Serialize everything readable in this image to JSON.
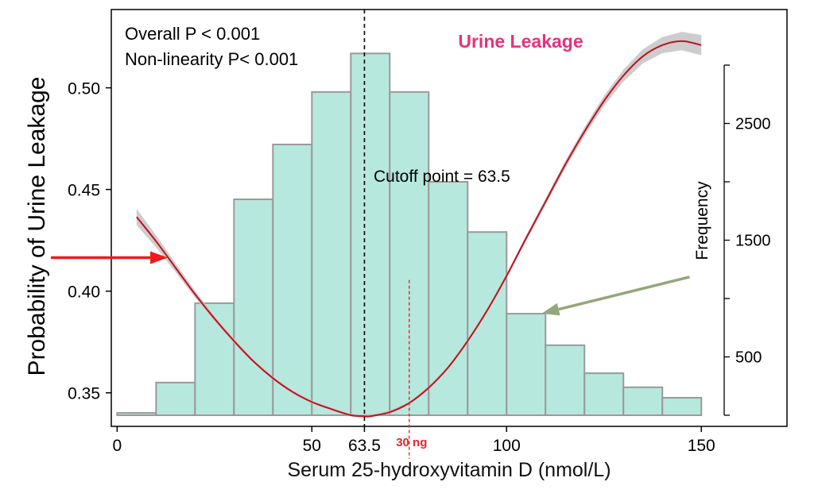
{
  "chart_data": {
    "type": "bar+line",
    "title": "Urine Leakage",
    "title_color": "#e8317b",
    "xlabel": "Serum 25-hydroxyvitamin D (nmol/L)",
    "ylabel": "Probability of Urine Leakage",
    "y2label": "Frequency",
    "xlim": [
      -1.5,
      172
    ],
    "ylim": [
      0.3335,
      0.5385
    ],
    "y2lim": [
      0,
      3000
    ],
    "x_ticks": [
      0,
      50,
      100,
      150
    ],
    "x_tick_labels": [
      "0",
      "50",
      "100",
      "150"
    ],
    "extra_x_tick": {
      "value": 63.5,
      "label": "63.5"
    },
    "y_ticks": [
      0.35,
      0.4,
      0.45,
      0.5
    ],
    "y_tick_labels": [
      "0.35",
      "0.40",
      "0.45",
      "0.50"
    ],
    "y2_ticks": [
      0,
      500,
      1000,
      1500,
      2000,
      2500,
      3000
    ],
    "y2_tick_labels": [
      "",
      "500",
      "",
      "1500",
      "",
      "2500",
      ""
    ],
    "annotations": {
      "overall_p": "Overall P < 0.001",
      "nonlinearity_p": "Non-linearity P< 0.001",
      "cutoff": "Cutoff point = 63.5",
      "ng30": "30 ng"
    },
    "cutoff_x": 63.5,
    "ng30_x": 75,
    "histogram": {
      "bin_edges": [
        0,
        10,
        20,
        30,
        40,
        50,
        60,
        70,
        80,
        90,
        100,
        110,
        120,
        130,
        140,
        150
      ],
      "counts": [
        20,
        280,
        960,
        1850,
        2320,
        2770,
        3100,
        2770,
        2000,
        1570,
        870,
        600,
        360,
        240,
        150
      ],
      "fill": "#b7e8dd",
      "edge": "#9a9a9a"
    },
    "spline": {
      "x": [
        5,
        10,
        15,
        20,
        25,
        30,
        35,
        40,
        45,
        50,
        55,
        60,
        63.5,
        65,
        70,
        75,
        80,
        85,
        90,
        95,
        100,
        105,
        110,
        115,
        120,
        125,
        130,
        135,
        140,
        145,
        150
      ],
      "y": [
        0.4365,
        0.4245,
        0.4115,
        0.3985,
        0.3865,
        0.3755,
        0.3655,
        0.3572,
        0.3505,
        0.3455,
        0.342,
        0.339,
        0.3385,
        0.3385,
        0.3405,
        0.345,
        0.3525,
        0.3625,
        0.3755,
        0.3905,
        0.4075,
        0.426,
        0.444,
        0.462,
        0.4785,
        0.4935,
        0.506,
        0.5155,
        0.521,
        0.523,
        0.521
      ],
      "ci_halfwidth": [
        0.004,
        0.003,
        0.0022,
        0.0017,
        0.0013,
        0.0011,
        0.0009,
        0.0008,
        0.0007,
        0.0007,
        0.0007,
        0.0007,
        0.0007,
        0.0007,
        0.0007,
        0.0007,
        0.0008,
        0.0008,
        0.0009,
        0.001,
        0.0011,
        0.0013,
        0.0015,
        0.0018,
        0.0021,
        0.0025,
        0.003,
        0.0035,
        0.004,
        0.0045,
        0.005
      ],
      "line_color": "#c0111d",
      "ci_color": "#c8c8c8"
    },
    "arrows": [
      {
        "name": "red-arrow",
        "color": "#ee1c1c",
        "from": [
          -17,
          0.4165
        ],
        "to": [
          13,
          0.4165
        ]
      },
      {
        "name": "green-arrow",
        "color": "#93a77a",
        "from": [
          147,
          0.407
        ],
        "to": [
          109,
          0.389
        ]
      }
    ]
  }
}
